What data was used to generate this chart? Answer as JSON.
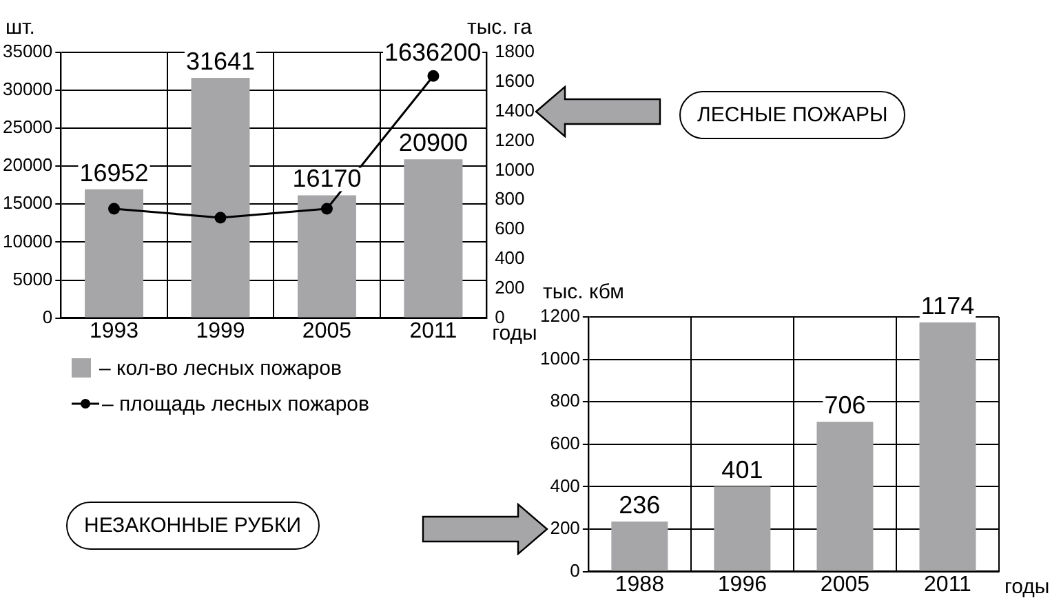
{
  "chart_data": [
    {
      "type": "bar",
      "ylabel": "шт.",
      "y2label": "тыс. га",
      "xlabel": "годы",
      "categories": [
        "1993",
        "1999",
        "2005",
        "2011"
      ],
      "series": [
        {
          "name": "– кол-во лесных пожаров",
          "type": "bar",
          "color": "#a6a6a8",
          "values": [
            16952,
            31641,
            16170,
            20900
          ],
          "value_labels": [
            "16952",
            "31641",
            "16170",
            "20900"
          ]
        },
        {
          "name": "– площадь лесных пожаров",
          "type": "line",
          "axis": "y2",
          "color": "#000000",
          "values": [
            740,
            680,
            740,
            1640
          ]
        }
      ],
      "annotations": [
        "1636200",
        "ЛЕСНЫЕ ПОЖАРЫ"
      ],
      "ylim": [
        0,
        35000
      ],
      "yticks": [
        0,
        5000,
        10000,
        15000,
        20000,
        25000,
        30000,
        35000
      ],
      "y2lim": [
        0,
        1800
      ],
      "y2ticks": [
        0,
        200,
        400,
        600,
        800,
        1000,
        1200,
        1400,
        1600,
        1800
      ],
      "grid": true,
      "legend": "bottom",
      "marker": "circle",
      "line_style": "solid"
    },
    {
      "type": "bar",
      "annotations": [
        "НЕЗАКОННЫЕ РУБКИ"
      ],
      "ylabel": "тыс. кбм",
      "xlabel": "годы",
      "categories": [
        "1988",
        "1996",
        "2005",
        "2011"
      ],
      "values": [
        236,
        401,
        706,
        1174
      ],
      "color": "#a6a6a8",
      "ylim": [
        0,
        1200
      ],
      "yticks": [
        0,
        200,
        400,
        600,
        800,
        1000,
        1200
      ],
      "grid": true,
      "data_labels": true
    }
  ]
}
